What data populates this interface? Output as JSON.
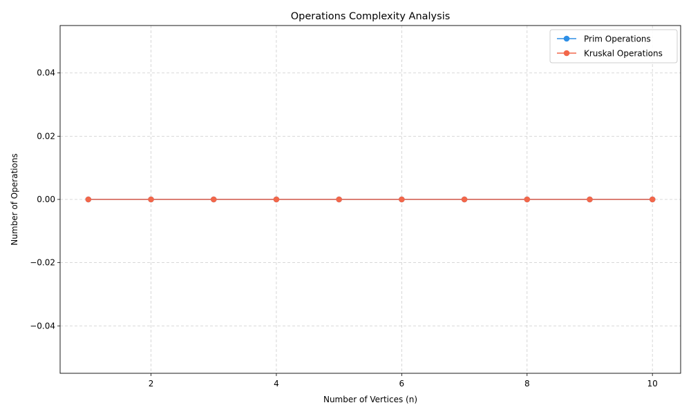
{
  "chart_data": {
    "type": "line",
    "title": "Operations Complexity Analysis",
    "xlabel": "Number of Vertices (n)",
    "ylabel": "Number of Operations",
    "x": [
      1,
      2,
      3,
      4,
      5,
      6,
      7,
      8,
      9,
      10
    ],
    "xlim": [
      0.55,
      10.45
    ],
    "ylim": [
      -0.055,
      0.055
    ],
    "xticks": [
      2,
      4,
      6,
      8,
      10
    ],
    "xtick_labels": [
      "2",
      "4",
      "6",
      "8",
      "10"
    ],
    "yticks": [
      -0.04,
      -0.02,
      0.0,
      0.02,
      0.04
    ],
    "ytick_labels": [
      "−0.04",
      "−0.02",
      "0.00",
      "0.02",
      "0.04"
    ],
    "grid": true,
    "legend_position": "top-right",
    "series": [
      {
        "name": "Prim Operations",
        "color": "#2e8fe6",
        "marker": "circle",
        "values": [
          0,
          0,
          0,
          0,
          0,
          0,
          0,
          0,
          0,
          0
        ]
      },
      {
        "name": "Kruskal Operations",
        "color": "#f2674a",
        "marker": "circle",
        "values": [
          0,
          0,
          0,
          0,
          0,
          0,
          0,
          0,
          0,
          0
        ]
      }
    ]
  }
}
